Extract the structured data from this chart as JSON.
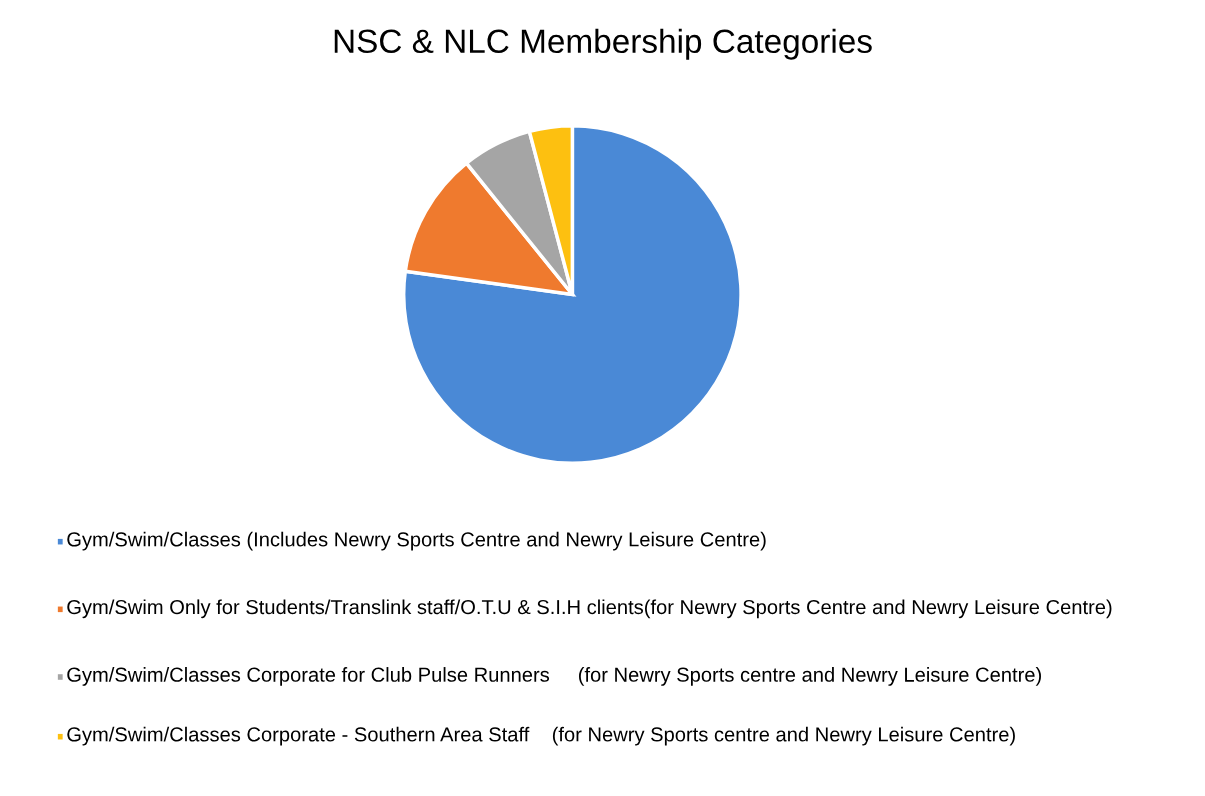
{
  "chart_data": {
    "type": "pie",
    "title": "NSC & NLC Membership Categories",
    "categories": [
      "Gym/Swim/Classes (Includes Newry Sports Centre and Newry Leisure Centre)",
      "Gym/Swim Only for Students/Translink staff/O.T.U & S.I.H clients(for Newry Sports Centre and Newry Leisure Centre)",
      "Gym/Swim/Classes Corporate for Club Pulse Runners     (for Newry Sports centre and Newry Leisure Centre)",
      "Gym/Swim/Classes Corporate - Southern Area Staff    (for Newry Sports centre and Newry Leisure Centre)"
    ],
    "values": [
      77.2,
      12.0,
      6.7,
      4.1
    ],
    "colors": [
      "#4a89d6",
      "#ef7a2e",
      "#a5a5a5",
      "#fdc010"
    ],
    "legend": "bottom"
  }
}
